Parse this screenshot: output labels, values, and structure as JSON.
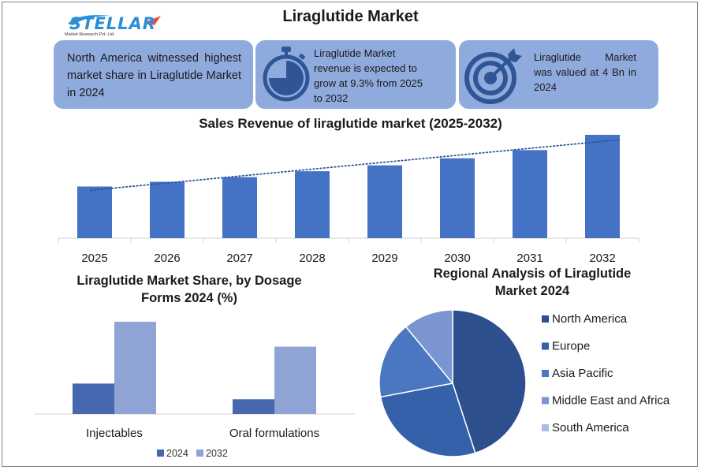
{
  "header": {
    "title": "Liraglutide Market",
    "logo_text": "STELLAR",
    "logo_subtext": "Market Research Pvt. Ltd."
  },
  "cards": [
    {
      "text": "North America witnessed highest market share in Liraglutide Market in 2024",
      "icon": "none"
    },
    {
      "text": "Liraglutide Market revenue is expected to grow at 9.3% from 2025 to 2032",
      "icon": "stopwatch-icon"
    },
    {
      "text": "Liraglutide Market was valued at 4 Bn in 2024",
      "icon": "target-icon"
    }
  ],
  "colors": {
    "bar_main": "#4472c4",
    "bar_2024": "#4668b0",
    "bar_2032": "#8fa3d4",
    "card_bg": "#8faadc",
    "icon_color": "#2f5597",
    "pie": [
      "#2e4f8e",
      "#3560aa",
      "#4a76c2",
      "#7a95cf",
      "#a9bce3"
    ]
  },
  "chart_data": [
    {
      "type": "bar",
      "title": "Sales Revenue of liraglutide market (2025-2032)",
      "categories": [
        "2025",
        "2026",
        "2027",
        "2028",
        "2029",
        "2030",
        "2031",
        "2032"
      ],
      "values": [
        4.4,
        4.8,
        5.2,
        5.7,
        6.2,
        6.8,
        7.5,
        8.8
      ],
      "ylim": [
        0,
        9
      ],
      "trendline": "dotted linear",
      "xlabel": "",
      "ylabel": ""
    },
    {
      "type": "bar",
      "title": "Liraglutide Market Share, by Dosage Forms 2024 (%)",
      "categories": [
        "Injectables",
        "Oral formulations"
      ],
      "series": [
        {
          "name": "2024",
          "values": [
            33,
            16
          ]
        },
        {
          "name": "2032",
          "values": [
            100,
            73
          ]
        }
      ],
      "ylim": [
        0,
        100
      ],
      "legend": "bottom"
    },
    {
      "type": "pie",
      "title": "Regional Analysis of Liraglutide Market 2024",
      "labels": [
        "North America",
        "Europe",
        "Asia Pacific",
        "Middle East and Africa",
        "South America"
      ],
      "values": [
        45,
        27,
        17,
        11,
        0
      ],
      "legend": "right"
    }
  ]
}
